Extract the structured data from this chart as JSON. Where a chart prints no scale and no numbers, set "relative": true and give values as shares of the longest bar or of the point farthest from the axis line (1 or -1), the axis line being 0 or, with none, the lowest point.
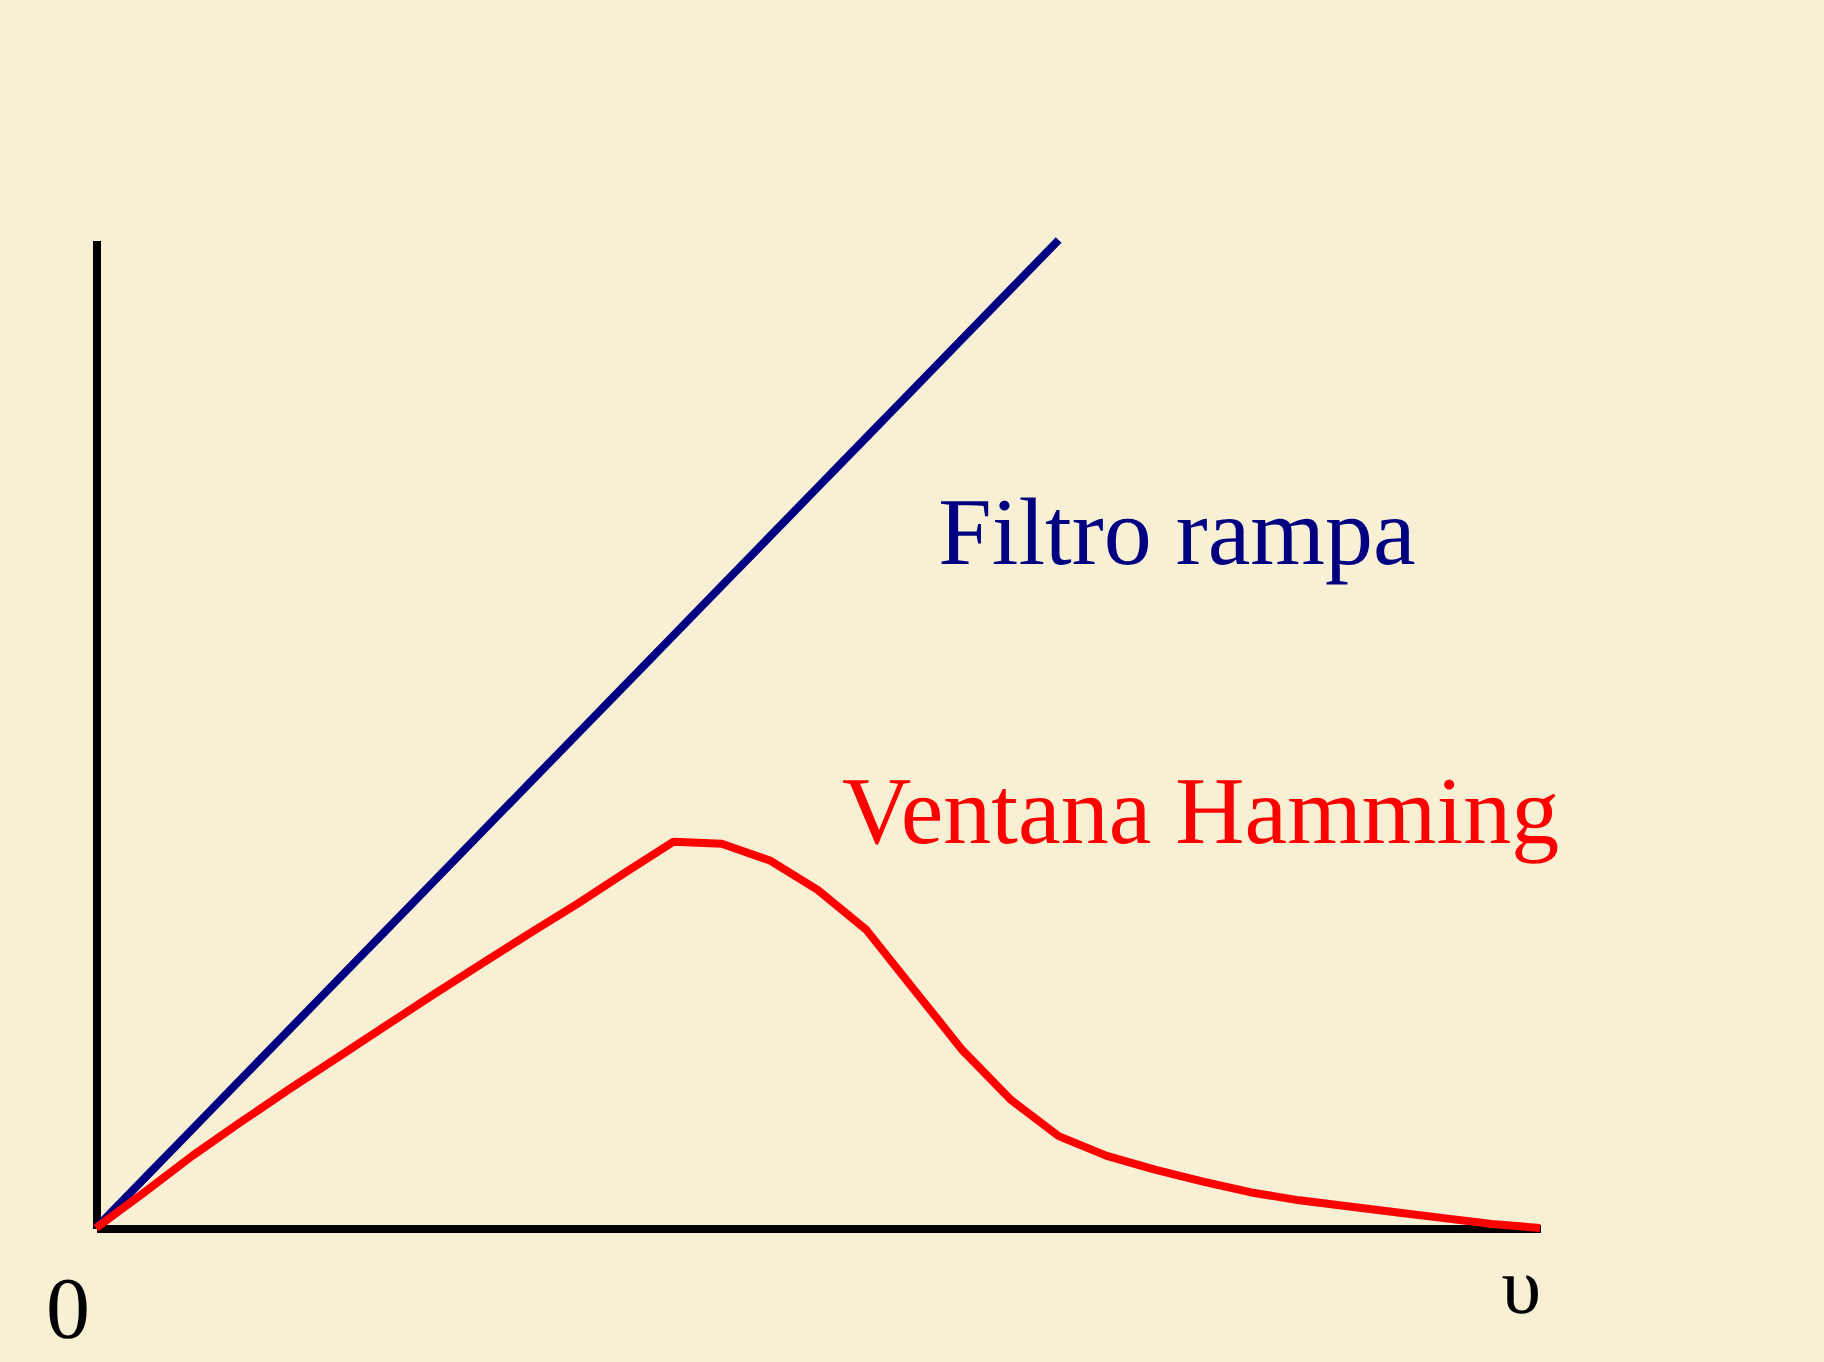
{
  "chart_data": {
    "type": "line",
    "relative": true,
    "xlabel": "υ",
    "annotations": [
      "0"
    ],
    "categories": [
      null,
      null,
      null,
      null,
      null,
      null,
      null,
      null,
      null,
      null,
      null,
      null,
      null,
      null,
      null,
      null,
      null,
      null,
      null,
      null,
      null,
      null,
      null,
      null,
      null,
      null,
      null,
      null,
      null,
      null,
      null
    ],
    "series": [
      {
        "name": "Filtro rampa",
        "color": "#000080",
        "values": [
          0,
          0.05,
          0.1,
          0.15,
          0.2,
          0.25,
          0.3,
          0.35,
          0.4,
          0.45,
          0.5,
          0.55,
          0.6,
          0.65,
          0.7,
          0.75,
          0.8,
          0.85,
          0.9,
          0.95,
          1.0,
          null,
          null,
          null,
          null,
          null,
          null,
          null,
          null,
          null,
          null
        ]
      },
      {
        "name": "Ventana Hamming",
        "color": "#ff0000",
        "values": [
          0,
          0.036,
          0.073,
          0.107,
          0.14,
          0.172,
          0.204,
          0.236,
          0.267,
          0.298,
          0.328,
          0.36,
          0.391,
          0.389,
          0.372,
          0.342,
          0.302,
          0.241,
          0.18,
          0.13,
          0.093,
          0.073,
          0.059,
          0.047,
          0.036,
          0.028,
          0.022,
          0.016,
          0.01,
          0.004,
          0
        ]
      }
    ]
  }
}
